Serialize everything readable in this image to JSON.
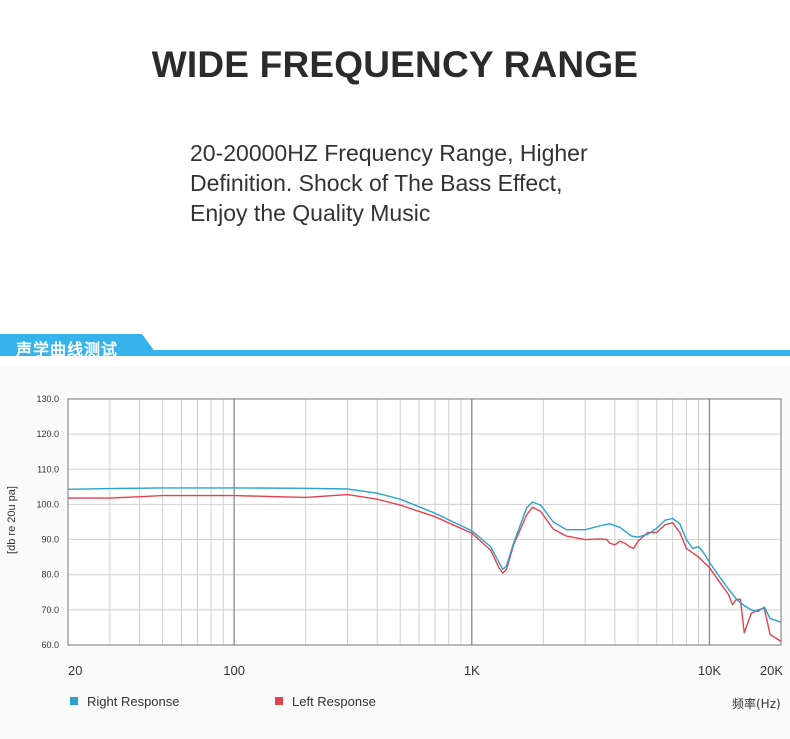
{
  "header": {
    "title": "WIDE FREQUENCY RANGE",
    "description_lines": [
      "20-20000HZ Frequency Range, Higher",
      "Definition. Shock of The Bass Effect,",
      "Enjoy the Quality Music"
    ]
  },
  "section": {
    "label": "声学曲线测试",
    "accent_color": "#35b3ea"
  },
  "chart_data": {
    "type": "line",
    "title": "",
    "xlabel": "频率(Hz)",
    "ylabel": "[db re 20u pa]",
    "xscale": "log",
    "xlim": [
      20,
      20000
    ],
    "ylim": [
      60,
      130
    ],
    "x_ticks": [
      {
        "value": 20,
        "label": "20"
      },
      {
        "value": 100,
        "label": "100"
      },
      {
        "value": 1000,
        "label": "1K"
      },
      {
        "value": 10000,
        "label": "10K"
      },
      {
        "value": 20000,
        "label": "20K"
      }
    ],
    "y_ticks": [
      {
        "value": 130,
        "label": "130.0"
      },
      {
        "value": 120,
        "label": "120.0"
      },
      {
        "value": 110,
        "label": "110.0"
      },
      {
        "value": 100,
        "label": "100.0"
      },
      {
        "value": 90,
        "label": "90.0"
      },
      {
        "value": 80,
        "label": "80.0"
      },
      {
        "value": 70,
        "label": "70.0"
      },
      {
        "value": 60,
        "label": "60.0"
      }
    ],
    "grid": true,
    "legend_position": "bottom-left",
    "series": [
      {
        "name": "Right Response",
        "color": "#2aa3cf",
        "points": [
          [
            20,
            104.3
          ],
          [
            30,
            104.5
          ],
          [
            50,
            104.7
          ],
          [
            100,
            104.7
          ],
          [
            200,
            104.6
          ],
          [
            300,
            104.4
          ],
          [
            400,
            103.2
          ],
          [
            500,
            101.5
          ],
          [
            700,
            97.5
          ],
          [
            1000,
            92.5
          ],
          [
            1200,
            88.0
          ],
          [
            1300,
            83.5
          ],
          [
            1350,
            81.5
          ],
          [
            1400,
            82.5
          ],
          [
            1500,
            89.0
          ],
          [
            1700,
            99.0
          ],
          [
            1800,
            100.7
          ],
          [
            1950,
            99.8
          ],
          [
            2200,
            95.0
          ],
          [
            2500,
            92.8
          ],
          [
            3000,
            92.8
          ],
          [
            3500,
            94.0
          ],
          [
            3800,
            94.5
          ],
          [
            4200,
            93.5
          ],
          [
            4700,
            91.0
          ],
          [
            5000,
            90.7
          ],
          [
            5500,
            91.5
          ],
          [
            6000,
            93.2
          ],
          [
            6500,
            95.5
          ],
          [
            7000,
            96.0
          ],
          [
            7500,
            94.5
          ],
          [
            8000,
            90.0
          ],
          [
            8500,
            87.5
          ],
          [
            9000,
            88.0
          ],
          [
            9500,
            86.0
          ],
          [
            10000,
            83.5
          ],
          [
            11000,
            79.5
          ],
          [
            12000,
            76.0
          ],
          [
            13000,
            73.0
          ],
          [
            14000,
            71.2
          ],
          [
            15000,
            70.0
          ],
          [
            16000,
            69.5
          ],
          [
            17000,
            70.8
          ],
          [
            18000,
            67.5
          ],
          [
            19000,
            67.0
          ],
          [
            20000,
            66.5
          ]
        ]
      },
      {
        "name": "Left Response",
        "color": "#e3434f",
        "points": [
          [
            20,
            101.8
          ],
          [
            30,
            101.8
          ],
          [
            50,
            102.5
          ],
          [
            100,
            102.5
          ],
          [
            200,
            102.0
          ],
          [
            300,
            102.8
          ],
          [
            400,
            101.5
          ],
          [
            500,
            99.8
          ],
          [
            700,
            96.5
          ],
          [
            1000,
            91.8
          ],
          [
            1200,
            87.0
          ],
          [
            1300,
            82.0
          ],
          [
            1350,
            80.5
          ],
          [
            1400,
            81.5
          ],
          [
            1500,
            88.5
          ],
          [
            1700,
            97.0
          ],
          [
            1800,
            99.2
          ],
          [
            1950,
            98.0
          ],
          [
            2200,
            93.0
          ],
          [
            2500,
            91.0
          ],
          [
            3000,
            90.0
          ],
          [
            3500,
            90.2
          ],
          [
            3700,
            90.0
          ],
          [
            3800,
            89.0
          ],
          [
            4000,
            88.5
          ],
          [
            4200,
            89.5
          ],
          [
            4400,
            89.0
          ],
          [
            4600,
            88.0
          ],
          [
            4800,
            87.5
          ],
          [
            5000,
            89.5
          ],
          [
            5500,
            92.0
          ],
          [
            6000,
            92.0
          ],
          [
            6500,
            94.2
          ],
          [
            7000,
            94.8
          ],
          [
            7500,
            92.0
          ],
          [
            8000,
            87.5
          ],
          [
            9000,
            85.0
          ],
          [
            10000,
            82.0
          ],
          [
            11000,
            78.0
          ],
          [
            12000,
            74.5
          ],
          [
            12500,
            71.5
          ],
          [
            13000,
            73.0
          ],
          [
            13500,
            73.0
          ],
          [
            14000,
            63.5
          ],
          [
            15000,
            69.0
          ],
          [
            16000,
            70.0
          ],
          [
            17000,
            70.5
          ],
          [
            18000,
            63.0
          ],
          [
            19000,
            62.0
          ],
          [
            20000,
            61.0
          ]
        ]
      }
    ]
  }
}
